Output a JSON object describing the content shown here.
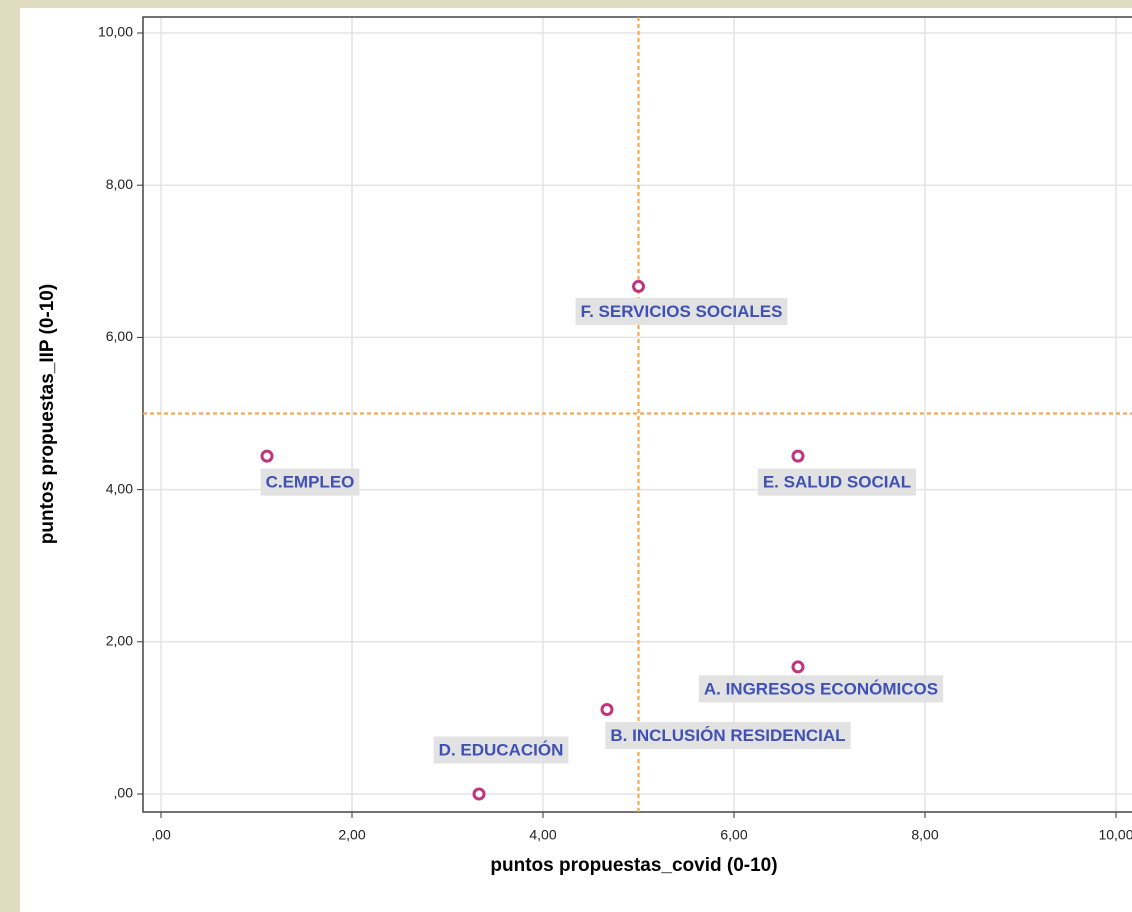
{
  "chart_data": {
    "type": "scatter",
    "x_label": "puntos propuestas_covid (0-10)",
    "y_label": "puntos propuestas_IIP (0-10)",
    "labels": [
      "F. SERVICIOS SOCIALES",
      "C.EMPLEO",
      "E. SALUD SOCIAL",
      "A. INGRESOS ECONÓMICOS",
      "B. INCLUSIÓN RESIDENCIAL",
      "D. EDUCACIÓN"
    ],
    "x": [
      5.0,
      1.11,
      6.67,
      6.67,
      4.67,
      3.33
    ],
    "y": [
      6.67,
      4.44,
      4.44,
      1.67,
      1.11,
      0.0
    ],
    "color": "#c2337f",
    "label_color": "#3f51b5",
    "reference_lines": {
      "x": 5,
      "y": 5,
      "color": "#f7a13a"
    },
    "xlim": [
      0,
      10
    ],
    "ylim": [
      0,
      10
    ],
    "xticks": [
      {
        "value": 0,
        "label": ",00"
      },
      {
        "value": 2,
        "label": "2,00"
      },
      {
        "value": 4,
        "label": "4,00"
      },
      {
        "value": 6,
        "label": "6,00"
      },
      {
        "value": 8,
        "label": "8,00"
      },
      {
        "value": 10,
        "label": "10,00"
      }
    ],
    "yticks": [
      {
        "value": 0,
        "label": ",00"
      },
      {
        "value": 2,
        "label": "2,00"
      },
      {
        "value": 4,
        "label": "4,00"
      },
      {
        "value": 6,
        "label": "6,00"
      },
      {
        "value": 8,
        "label": "8,00"
      },
      {
        "value": 10,
        "label": "10,00"
      }
    ],
    "grid": true
  }
}
